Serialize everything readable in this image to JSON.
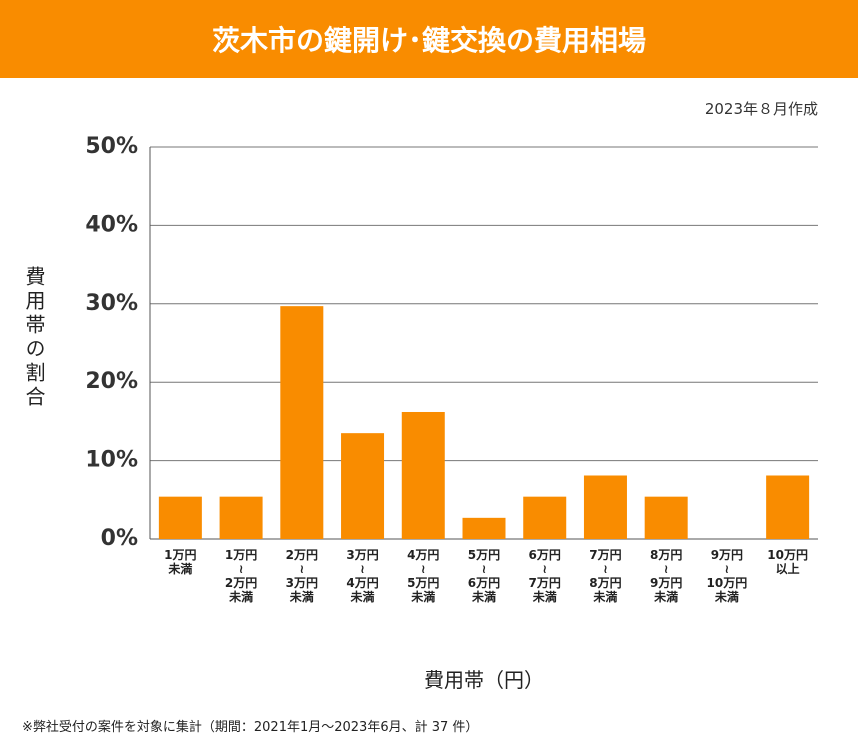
{
  "chart_data": {
    "type": "bar",
    "title": "茨木市の鍵開け･鍵交換の費用相場",
    "subtitle": "2023年８月作成",
    "y_label": "費用帯の割合",
    "x_label": "費用帯（円）",
    "note": "※弊社受付の案件を対象に集計（期間：2021年1月～2023年6月、計 37 件）",
    "categories": [
      "1万円\n未満",
      "1万円\n≀\n2万円\n未満",
      "2万円\n≀\n3万円\n未満",
      "3万円\n≀\n4万円\n未満",
      "4万円\n≀\n5万円\n未満",
      "5万円\n≀\n6万円\n未満",
      "6万円\n≀\n7万円\n未満",
      "7万円\n≀\n8万円\n未満",
      "8万円\n≀\n9万円\n未満",
      "9万円\n≀\n10万円\n未満",
      "10万円\n以上"
    ],
    "values": [
      5.4,
      5.4,
      29.7,
      13.5,
      16.2,
      2.7,
      5.4,
      8.1,
      5.4,
      0,
      8.1
    ],
    "color": "#f98c00",
    "ylim": [
      0,
      50
    ],
    "yticks": [
      {
        "value": 0,
        "label": "0%"
      },
      {
        "value": 10,
        "label": "10%"
      },
      {
        "value": 20,
        "label": "20%"
      },
      {
        "value": 30,
        "label": "30%"
      },
      {
        "value": 40,
        "label": "40%"
      },
      {
        "value": 50,
        "label": "50%"
      }
    ],
    "grid": true
  }
}
